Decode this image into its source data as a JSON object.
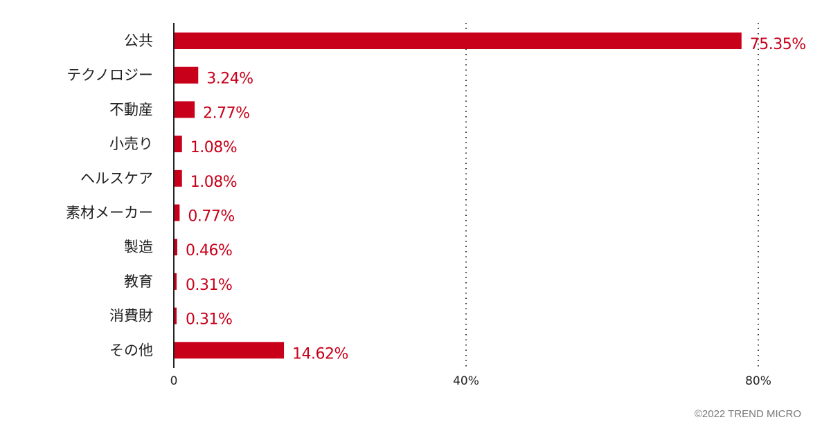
{
  "chart_data": {
    "type": "bar",
    "orientation": "horizontal",
    "categories": [
      "公共",
      "テクノロジー",
      "不動産",
      "小売り",
      "ヘルスケア",
      "素材メーカー",
      "製造",
      "教育",
      "消費財",
      "その他"
    ],
    "values": [
      75.35,
      3.24,
      2.77,
      1.08,
      1.08,
      0.77,
      0.46,
      0.31,
      0.31,
      14.62
    ],
    "data_labels": [
      "75.35%",
      "3.24%",
      "2.77%",
      "1.08%",
      "1.08%",
      "0.77%",
      "0.46%",
      "0.31%",
      "0.31%",
      "14.62%"
    ],
    "x_ticks": [
      "0",
      "40%",
      "80%"
    ],
    "xlim": [
      0,
      80
    ],
    "grid": "vertical dotted at 40% and 80%",
    "title": "",
    "xlabel": "",
    "ylabel": "",
    "bar_color": "#c8001a"
  },
  "credit": "©2022 TREND MICRO"
}
